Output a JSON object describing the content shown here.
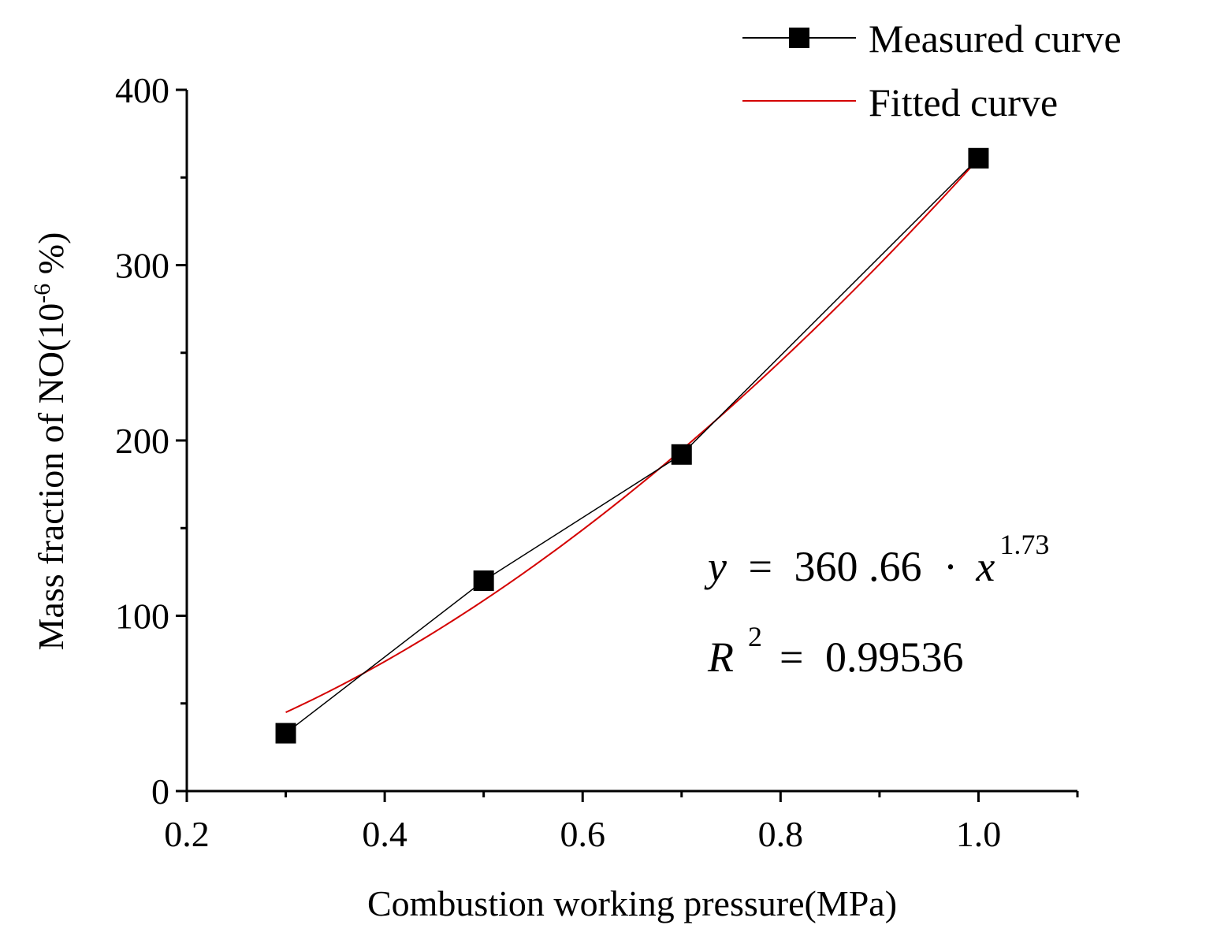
{
  "chart_data": {
    "type": "line",
    "xlabel": "Combustion working pressure(MPa)",
    "ylabel_main": "Mass fraction of NO(10",
    "ylabel_sup": "-6",
    "ylabel_tail": " %)",
    "xlim": [
      0.2,
      1.1
    ],
    "ylim": [
      0,
      400
    ],
    "x_ticks": [
      0.2,
      0.4,
      0.6,
      0.8,
      1.0
    ],
    "x_tick_labels": [
      "0.2",
      "0.4",
      "0.6",
      "0.8",
      "1.0"
    ],
    "x_minor_ticks": [
      0.3,
      0.5,
      0.7,
      0.9,
      1.1
    ],
    "y_ticks": [
      0,
      100,
      200,
      300,
      400
    ],
    "y_tick_labels": [
      "0",
      "100",
      "200",
      "300",
      "400"
    ],
    "y_minor_ticks": [
      50,
      150,
      250,
      350
    ],
    "grid": false,
    "legend_position": "top-right",
    "series": [
      {
        "name": "Measured curve",
        "color": "#000000",
        "marker": "square",
        "x": [
          0.3,
          0.5,
          0.7,
          1.0
        ],
        "y": [
          33,
          120,
          192,
          361
        ]
      },
      {
        "name": "Fitted curve",
        "color": "#d40000",
        "marker": "none",
        "fit": {
          "coefficient": 360.66,
          "exponent": 1.73
        },
        "x_range": [
          0.3,
          1.0
        ]
      }
    ],
    "annotations": {
      "equation": {
        "y": "y",
        "eq": "=",
        "coef": "360 .66",
        "dot": "·",
        "x": "x",
        "exp": "1.73"
      },
      "r2": {
        "R": "R",
        "sup": "2",
        "eq": "=",
        "val": "0.99536"
      }
    }
  }
}
